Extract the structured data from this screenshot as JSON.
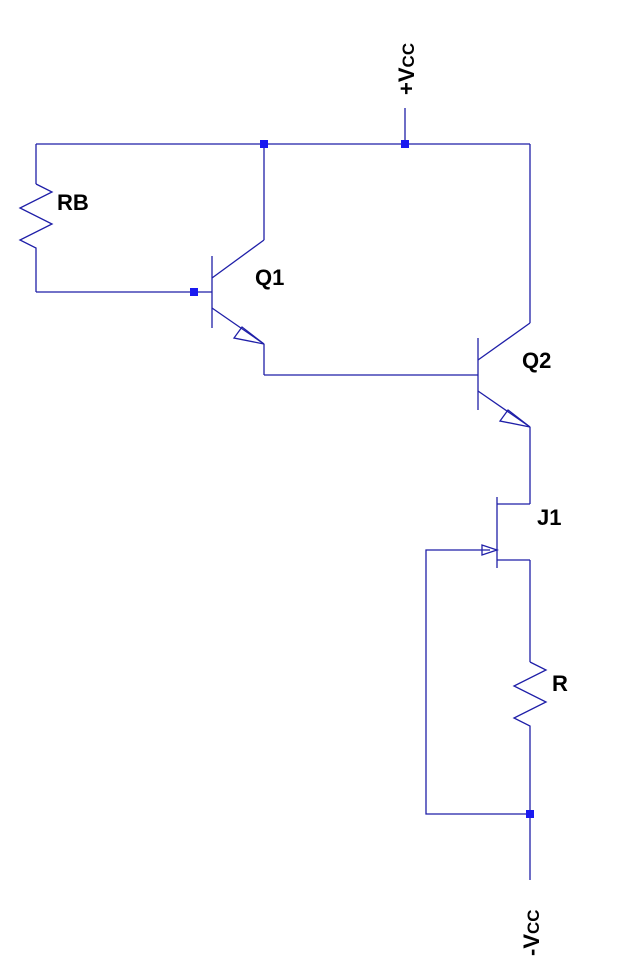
{
  "colors": {
    "wire": "#1f1fa8",
    "junction": "#1a1af0",
    "text": "#000000",
    "background": "#ffffff"
  },
  "components": {
    "rb": {
      "label": "RB",
      "kind": "resistor"
    },
    "q1": {
      "label": "Q1",
      "kind": "npn-transistor"
    },
    "q2": {
      "label": "Q2",
      "kind": "npn-transistor"
    },
    "j1": {
      "label": "J1",
      "kind": "n-channel-jfet"
    },
    "r": {
      "label": "R",
      "kind": "resistor"
    }
  },
  "supplies": {
    "positive": {
      "sign": "+",
      "main": "V",
      "sub": "CC"
    },
    "negative": {
      "sign": "-",
      "main": "V",
      "sub": "CC"
    }
  }
}
